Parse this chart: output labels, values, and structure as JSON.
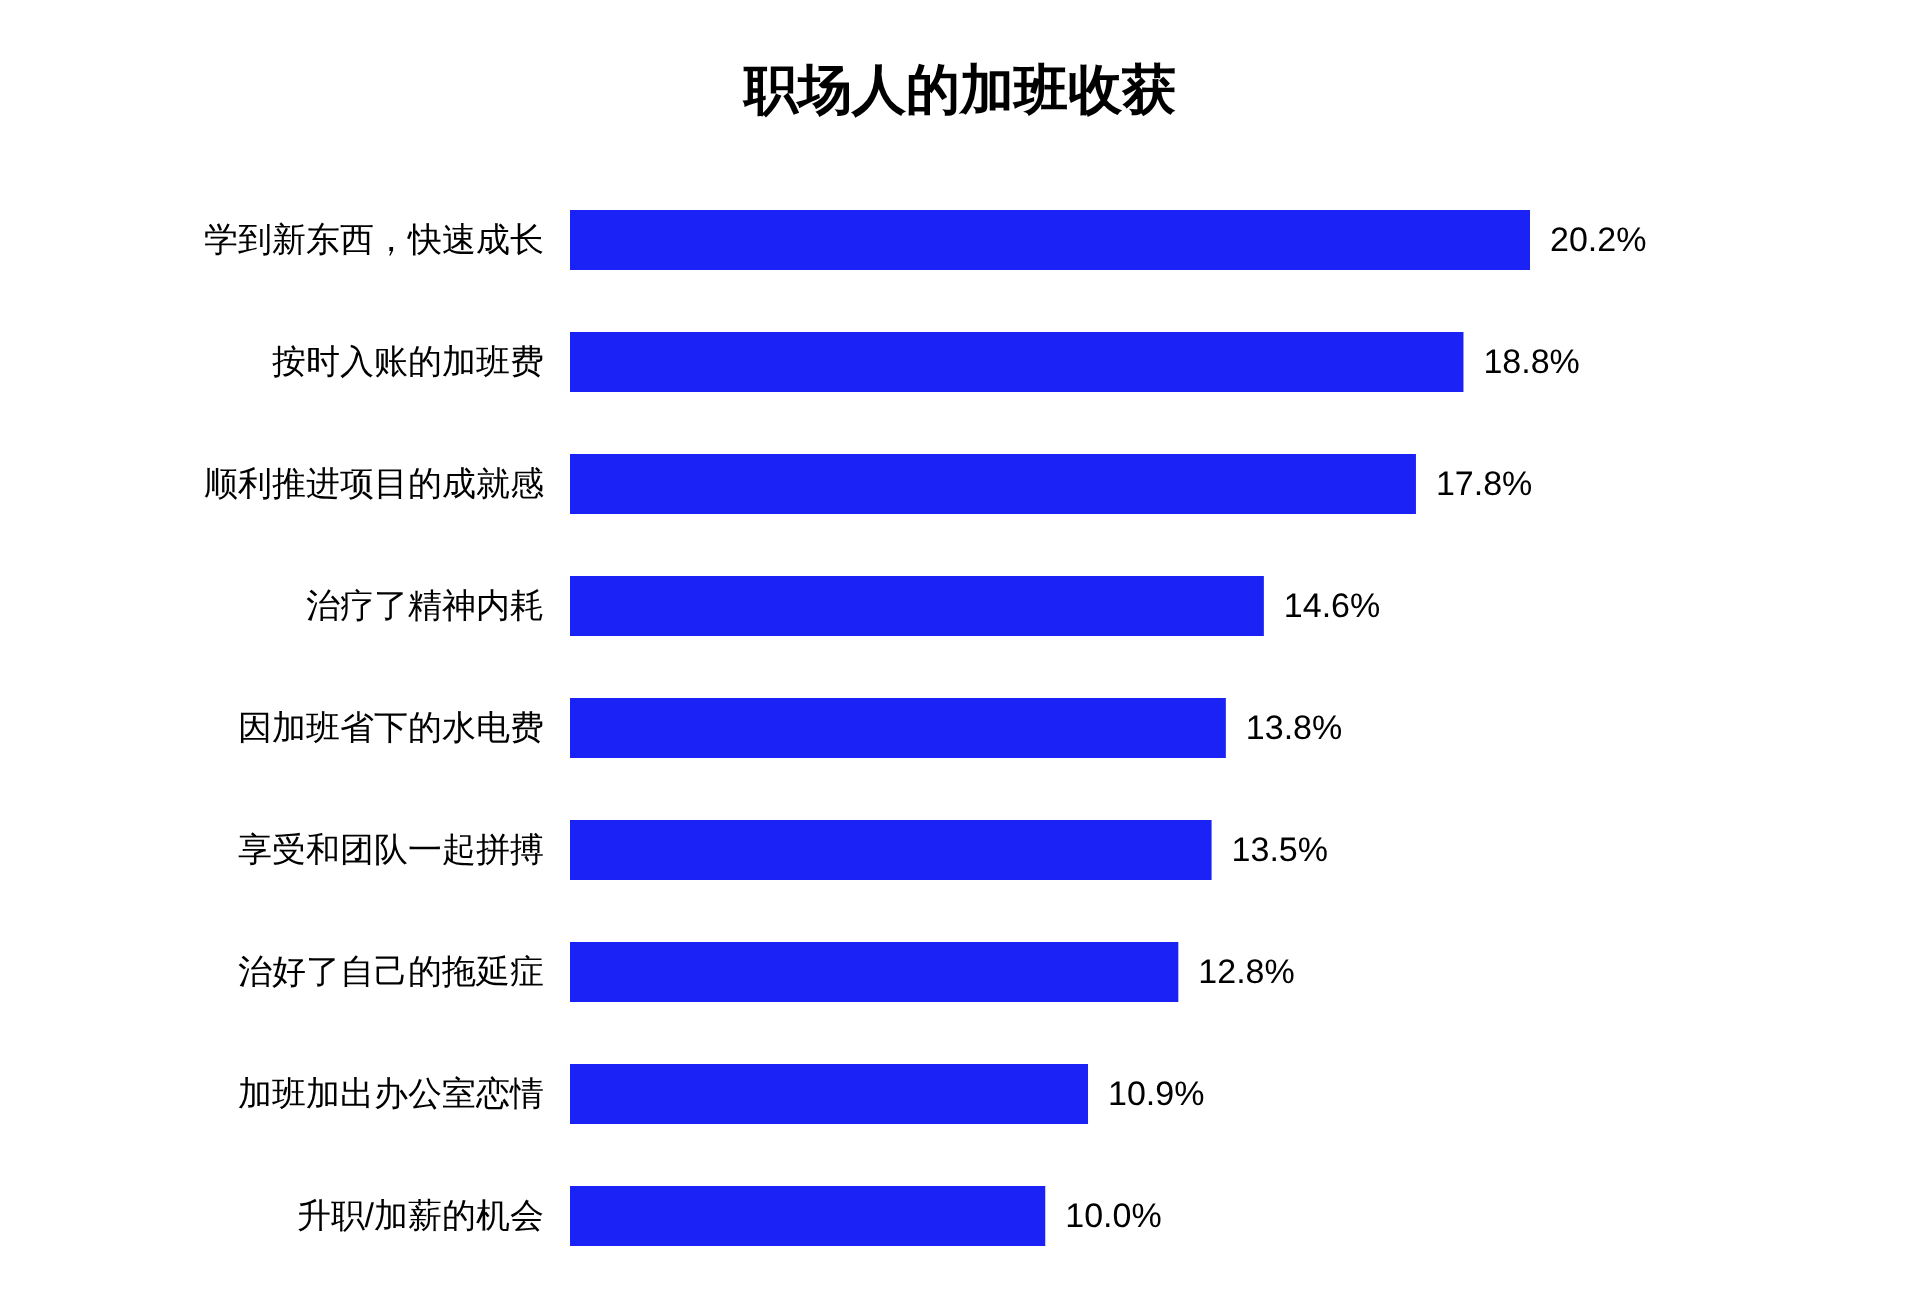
{
  "chart_data": {
    "type": "bar",
    "orientation": "horizontal",
    "title": "职场人的加班收获",
    "categories": [
      "学到新东西，快速成长",
      "按时入账的加班费",
      "顺利推进项目的成就感",
      "治疗了精神内耗",
      "因加班省下的水电费",
      "享受和团队一起拼搏",
      "治好了自己的拖延症",
      "加班加出办公室恋情",
      "升职/加薪的机会"
    ],
    "values": [
      20.2,
      18.8,
      17.8,
      14.6,
      13.8,
      13.5,
      12.8,
      10.9,
      10.0
    ],
    "value_labels": [
      "20.2%",
      "18.8%",
      "17.8%",
      "14.6%",
      "13.8%",
      "13.5%",
      "12.8%",
      "10.9%",
      "10.0%"
    ],
    "color": "#1a22f5"
  }
}
